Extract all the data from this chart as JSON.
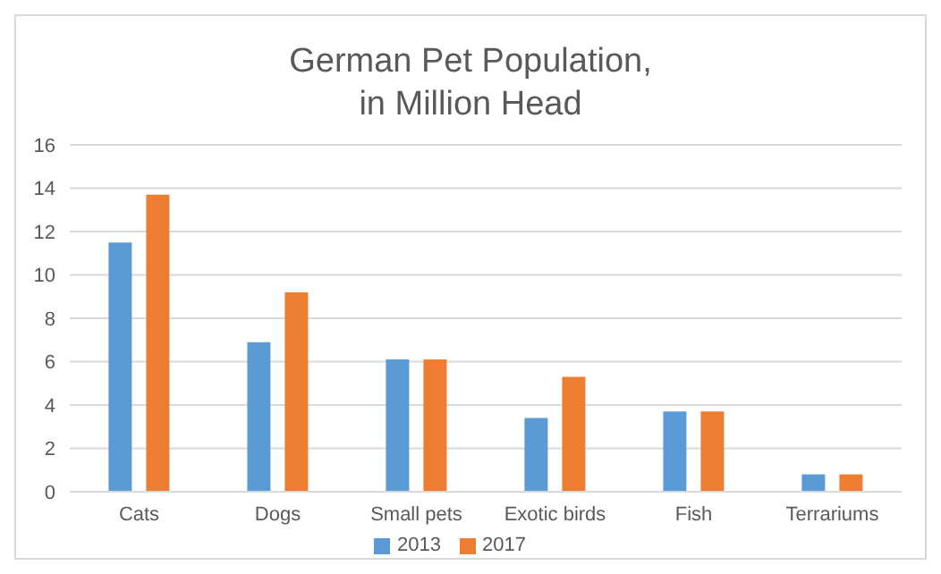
{
  "chart_data": {
    "type": "bar",
    "title": "German Pet Population,\nin Million Head",
    "categories": [
      "Cats",
      "Dogs",
      "Small pets",
      "Exotic birds",
      "Fish",
      "Terrariums"
    ],
    "series": [
      {
        "name": "2013",
        "color": "#5b9bd5",
        "values": [
          11.5,
          6.9,
          6.1,
          3.4,
          3.7,
          0.8
        ]
      },
      {
        "name": "2017",
        "color": "#ed7d31",
        "values": [
          13.7,
          9.2,
          6.1,
          5.3,
          3.7,
          0.8
        ]
      }
    ],
    "ylim": [
      0,
      16
    ],
    "yticks": [
      0,
      2,
      4,
      6,
      8,
      10,
      12,
      14,
      16
    ],
    "grid": "y",
    "legend": "bottom"
  }
}
